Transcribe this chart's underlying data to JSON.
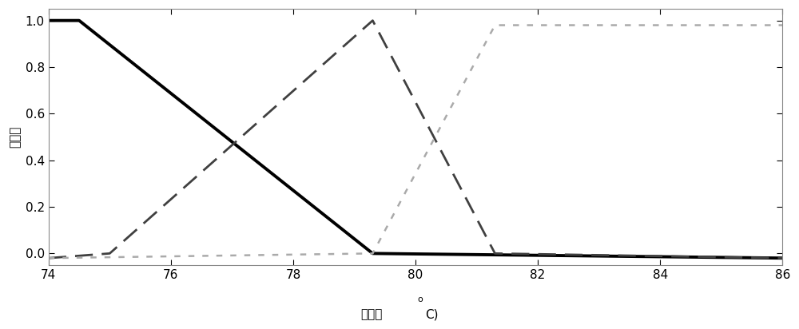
{
  "xlim": [
    74,
    86
  ],
  "ylim": [
    -0.05,
    1.05
  ],
  "xticks": [
    74,
    76,
    78,
    80,
    82,
    84,
    86
  ],
  "yticks": [
    0,
    0.2,
    0.4,
    0.6,
    0.8,
    1
  ],
  "ylabel": "隔属度",
  "xlabel_chinese": "温度（",
  "xlabel_sup": "o",
  "xlabel_unit": "C)",
  "line1_x": [
    74,
    74.5,
    79.3,
    86
  ],
  "line1_y": [
    1.0,
    1.0,
    0.0,
    -0.02
  ],
  "line1_color": "#000000",
  "line1_lw": 2.8,
  "line2_x": [
    74,
    75.0,
    79.3,
    81.3,
    86
  ],
  "line2_y": [
    -0.02,
    0.0,
    1.0,
    0.0,
    -0.02
  ],
  "line2_color": "#404040",
  "line2_lw": 2.0,
  "line3_x": [
    74,
    79.3,
    81.3,
    86
  ],
  "line3_y": [
    -0.02,
    0.0,
    0.98,
    0.98
  ],
  "line3_color": "#aaaaaa",
  "line3_lw": 1.8,
  "figsize": [
    10.0,
    4.12
  ],
  "dpi": 100,
  "bg_color": "#ffffff",
  "spine_color": "#888888",
  "tick_labelsize": 11
}
